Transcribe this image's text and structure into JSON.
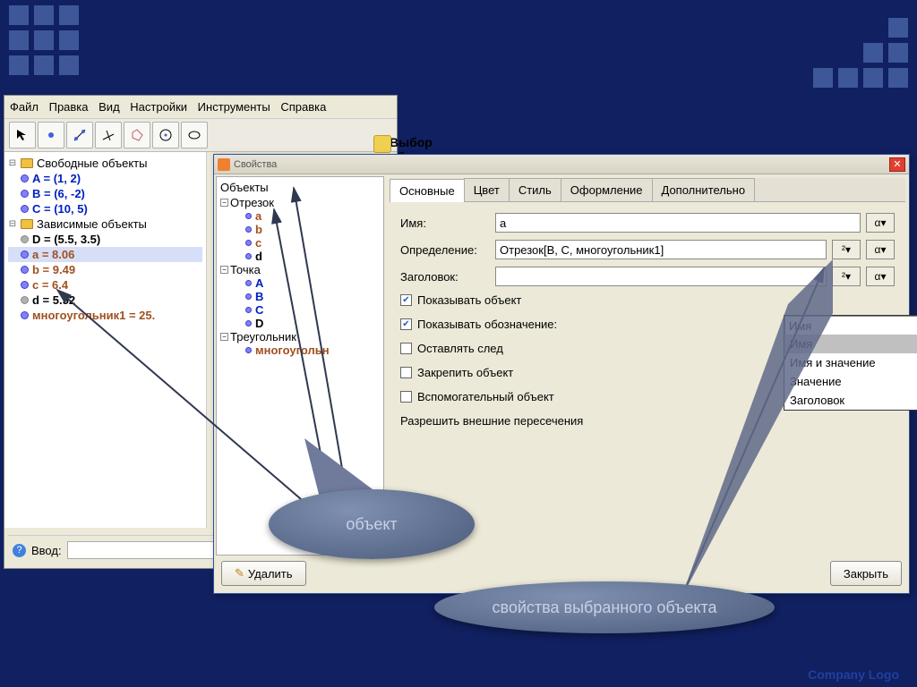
{
  "header": {
    "square_color": "#3d5799",
    "bg_color": "#102060"
  },
  "menu": {
    "items": [
      "Файл",
      "Правка",
      "Вид",
      "Настройки",
      "Инструменты",
      "Справка"
    ]
  },
  "selection_title": "Выбор объекта",
  "algebra": {
    "free_label": "Свободные объекты",
    "free_items": [
      {
        "text": "A = (1, 2)",
        "color": "blue"
      },
      {
        "text": "B = (6, -2)",
        "color": "blue"
      },
      {
        "text": "C = (10, 5)",
        "color": "blue"
      }
    ],
    "dep_label": "Зависимые объекты",
    "dep_items": [
      {
        "text": "D = (5.5, 3.5)",
        "color": "black",
        "dot": "gray"
      },
      {
        "text": "a = 8.06",
        "color": "brown",
        "selected": true
      },
      {
        "text": "b = 9.49",
        "color": "brown"
      },
      {
        "text": "c = 6.4",
        "color": "brown"
      },
      {
        "text": "d = 5.52",
        "color": "black",
        "dot": "gray"
      },
      {
        "text": "многоугольник1 = 25.",
        "color": "brown"
      }
    ]
  },
  "input_bar": {
    "label": "Ввод:"
  },
  "dialog": {
    "title": "Свойства",
    "tree_header": "Объекты",
    "tree": [
      {
        "label": "Отрезок",
        "children": [
          {
            "text": "a",
            "color": "brown"
          },
          {
            "text": "b",
            "color": "brown"
          },
          {
            "text": "c",
            "color": "brown"
          },
          {
            "text": "d",
            "color": "black"
          }
        ]
      },
      {
        "label": "Точка",
        "children": [
          {
            "text": "A",
            "color": "blue"
          },
          {
            "text": "B",
            "color": "blue"
          },
          {
            "text": "C",
            "color": "blue"
          },
          {
            "text": "D",
            "color": "black"
          }
        ]
      },
      {
        "label": "Треугольник",
        "children": [
          {
            "text": "многоугольн",
            "color": "brown"
          }
        ]
      }
    ],
    "tabs": [
      "Основные",
      "Цвет",
      "Стиль",
      "Оформление",
      "Дополнительно"
    ],
    "active_tab": 0,
    "form": {
      "name_label": "Имя:",
      "name_value": "a",
      "def_label": "Определение:",
      "def_value": "Отрезок[B, C, многоугольник1]",
      "cap_label": "Заголовок:",
      "cap_value": "",
      "alpha": "α",
      "sq": "²"
    },
    "checkboxes": {
      "show_obj": {
        "label": "Показывать объект",
        "checked": true
      },
      "show_label": {
        "label": "Показывать обозначение:",
        "checked": true
      },
      "trace": {
        "label": "Оставлять след",
        "checked": false
      },
      "fix": {
        "label": "Закрепить объект",
        "checked": false
      },
      "aux": {
        "label": "Вспомогательный объект",
        "checked": false
      },
      "allow": {
        "label": "Разрешить внешние пересечения"
      }
    },
    "label_dropdown": {
      "selected": "Имя",
      "options": [
        "Имя",
        "Имя и значение",
        "Значение",
        "Заголовок"
      ]
    },
    "buttons": {
      "delete": "Удалить",
      "close": "Закрыть"
    }
  },
  "callouts": {
    "c1": "объект",
    "c2": "свойства выбранного объекта"
  },
  "footer": "Company  Logo"
}
